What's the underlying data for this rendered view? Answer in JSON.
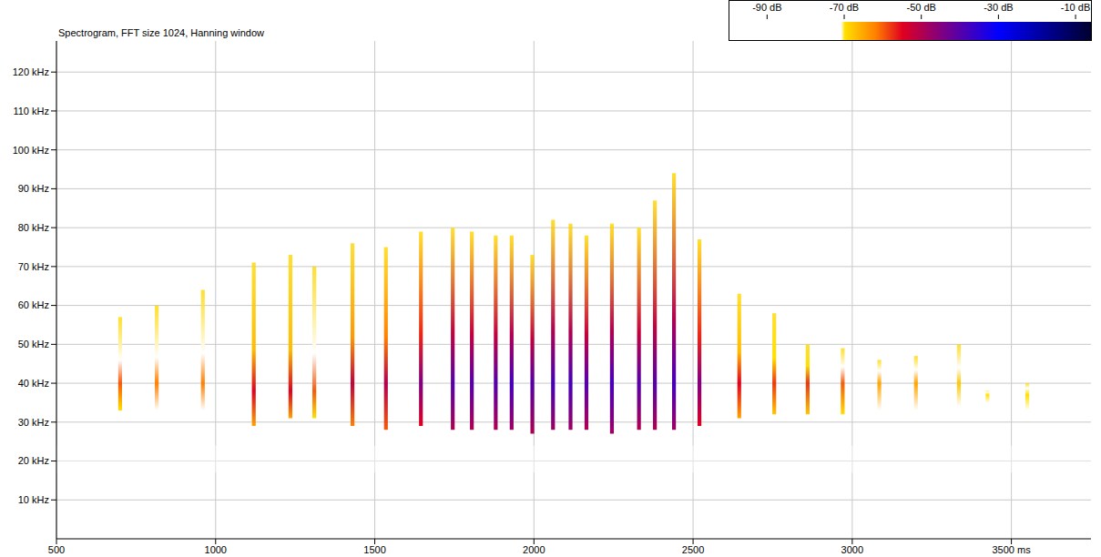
{
  "chart_data": {
    "type": "spectrogram",
    "title": "Spectrogram, FFT size 1024, Hanning window",
    "xlim": [
      500,
      3750
    ],
    "xticks": [
      500,
      1000,
      1500,
      2000,
      2500,
      3000,
      {
        "value": 3500,
        "label": "3500 ms"
      }
    ],
    "ylim": [
      0,
      128
    ],
    "yticks": [
      {
        "value": 10,
        "label": "10 kHz"
      },
      {
        "value": 20,
        "label": "20 kHz"
      },
      {
        "value": 30,
        "label": "30 kHz"
      },
      {
        "value": 40,
        "label": "40 kHz"
      },
      {
        "value": 50,
        "label": "50 kHz"
      },
      {
        "value": 60,
        "label": "60 kHz"
      },
      {
        "value": 70,
        "label": "70 kHz"
      },
      {
        "value": 80,
        "label": "80 kHz"
      },
      {
        "value": 90,
        "label": "90 kHz"
      },
      {
        "value": 100,
        "label": "100 kHz"
      },
      {
        "value": 110,
        "label": "110 kHz"
      },
      {
        "value": 120,
        "label": "120 kHz"
      }
    ],
    "grid": true,
    "calls": {
      "time": [
        700,
        815,
        960,
        1120,
        1235,
        1310,
        1430,
        1535,
        1645,
        1745,
        1805,
        1880,
        1930,
        1995,
        2060,
        2115,
        2165,
        2245,
        2330,
        2380,
        2440,
        2520,
        2645,
        2755,
        2860,
        2970,
        3085,
        3200,
        3335,
        3425,
        3550
      ],
      "low": [
        33,
        33,
        33,
        29,
        31,
        31,
        29,
        28,
        29,
        28,
        28,
        28,
        28,
        27,
        28,
        28,
        28,
        27,
        28,
        28,
        28,
        29,
        31,
        32,
        32,
        32,
        33,
        33,
        34,
        35,
        33
      ],
      "high": [
        57,
        60,
        64,
        71,
        73,
        70,
        76,
        75,
        79,
        80,
        79,
        78,
        78,
        73,
        82,
        81,
        78,
        81,
        80,
        87,
        94,
        77,
        63,
        58,
        50,
        49,
        46,
        47,
        50,
        38,
        40
      ],
      "peak": [
        40,
        40,
        40,
        38,
        38,
        38,
        40,
        40,
        40,
        40,
        40,
        40,
        40,
        40,
        40,
        40,
        40,
        40,
        40,
        40,
        40,
        40,
        40,
        40,
        40,
        40,
        40,
        40,
        40,
        37,
        37
      ],
      "level": [
        -60,
        -62,
        -62,
        -55,
        -55,
        -60,
        -52,
        -50,
        -45,
        -40,
        -40,
        -40,
        -38,
        -40,
        -38,
        -38,
        -40,
        -38,
        -40,
        -40,
        -38,
        -45,
        -55,
        -58,
        -58,
        -60,
        -65,
        -65,
        -68,
        -70,
        -70
      ]
    },
    "noise_band": {
      "low": 17,
      "high": 24,
      "level": -72
    },
    "colorbar": {
      "range": [
        -100,
        -6
      ],
      "ticks": [
        {
          "value": -90,
          "label": "-90 dB"
        },
        {
          "value": -70,
          "label": "-70 dB"
        },
        {
          "value": -50,
          "label": "-50 dB"
        },
        {
          "value": -30,
          "label": "-30 dB"
        },
        {
          "value": -10,
          "label": "-10 dB"
        }
      ],
      "stops": [
        -100,
        -71,
        -70,
        -62,
        -55,
        -45,
        -30,
        -6
      ],
      "colors": [
        "#ffffff",
        "#ffffff",
        "#ffe000",
        "#ff8000",
        "#e00020",
        "#800080",
        "#0000ff",
        "#000030"
      ]
    }
  }
}
